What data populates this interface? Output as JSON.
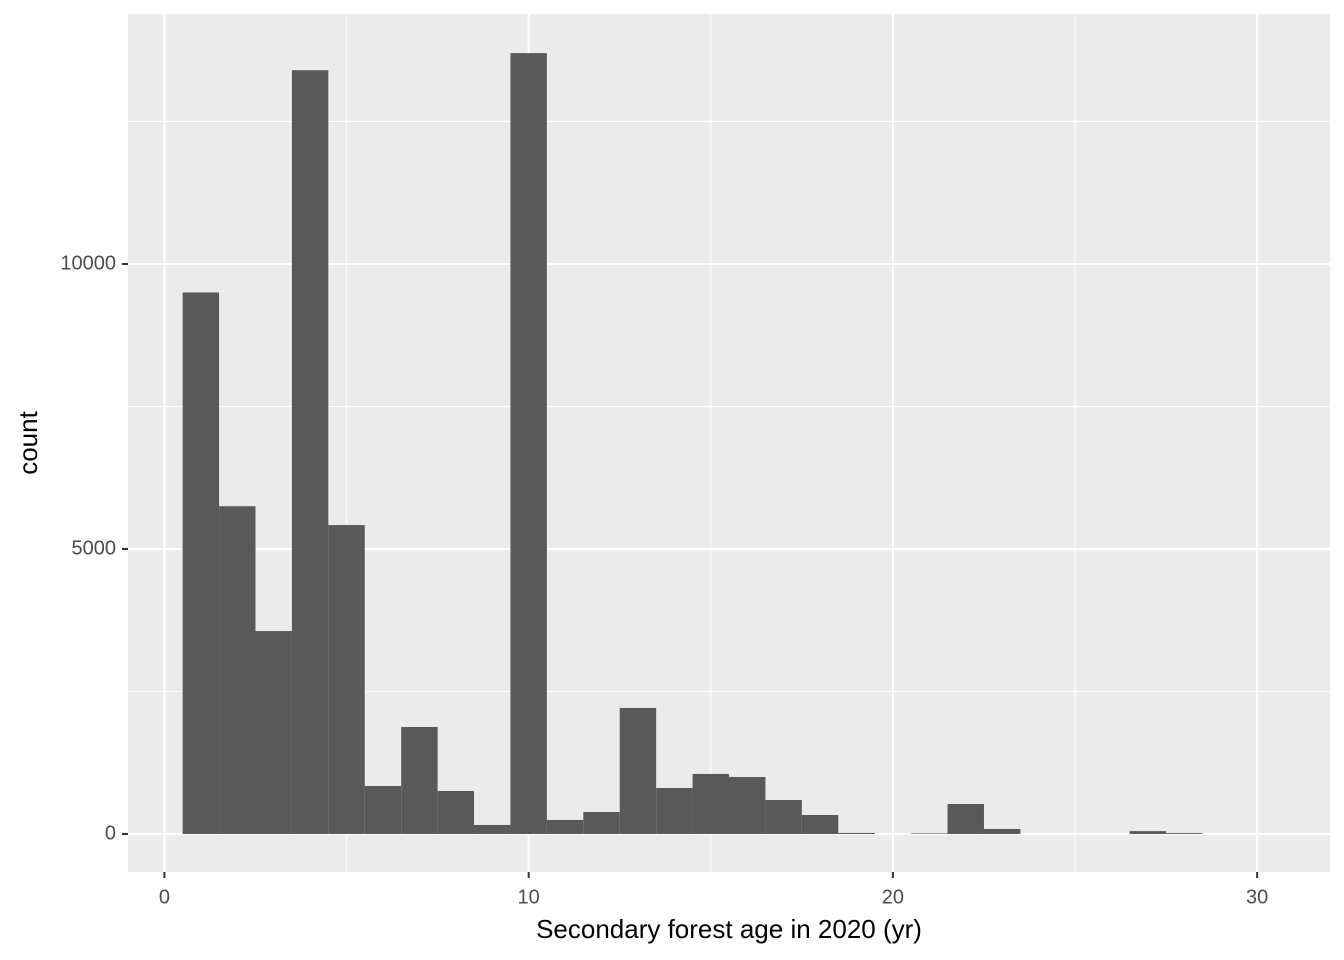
{
  "chart_data": {
    "type": "histogram",
    "x_label": "Secondary forest age in 2020 (yr)",
    "y_label": "count",
    "bins": [
      0.5,
      1.5,
      2.5,
      3.5,
      4.5,
      5.5,
      6.5,
      7.5,
      8.5,
      9.5,
      10.5,
      11.5,
      12.5,
      13.5,
      14.5,
      15.5,
      16.5,
      17.5,
      18.5,
      19.5,
      20.5,
      21.5,
      22.5,
      23.5,
      24.5,
      25.5,
      26.5,
      27.5,
      28.5,
      29.5,
      30.5
    ],
    "values": [
      9500,
      5750,
      3560,
      13400,
      5420,
      842,
      1877,
      754,
      158,
      13700,
      246,
      386,
      2211,
      807,
      1053,
      1000,
      596,
      333,
      18,
      0,
      10,
      526,
      88,
      0,
      0,
      0,
      50,
      15,
      0,
      0
    ],
    "color": "#595959",
    "xlim": [
      -1,
      32
    ],
    "xticks": [
      0,
      10,
      20,
      30
    ],
    "x_minor_ticks": [
      5,
      15,
      25
    ],
    "ylim": [
      -667,
      14386
    ],
    "yticks": [
      0,
      5000,
      10000
    ],
    "y_minor_ticks": [
      2500,
      7500,
      12500
    ],
    "grid": true
  }
}
